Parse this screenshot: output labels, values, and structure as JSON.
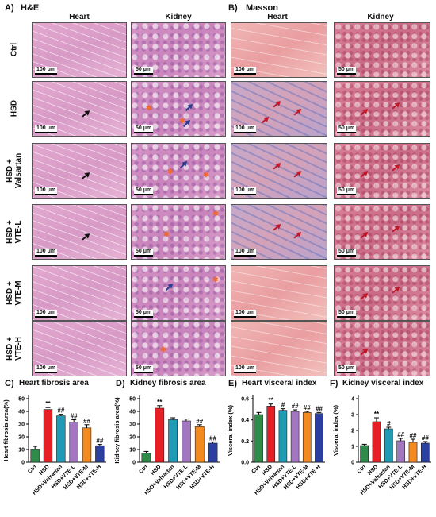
{
  "panels": {
    "a_label": "A)",
    "a_title": "H&E",
    "b_label": "B)",
    "b_title": "Masson",
    "col_heart": "Heart",
    "col_kidney": "Kidney",
    "scale_100": "100 μm",
    "scale_50": "50 μm"
  },
  "rows": [
    {
      "label": "Ctrl",
      "sub": ""
    },
    {
      "label": "HSD",
      "sub": ""
    },
    {
      "label": "HSD",
      "sub": "Valsartan"
    },
    {
      "label": "HSD",
      "sub": "VTE-L"
    },
    {
      "label": "HSD",
      "sub": "VTE-M"
    },
    {
      "label": "HSD",
      "sub": "VTE-H"
    }
  ],
  "row_plus": "+",
  "colors": {
    "bars": [
      "#2e8b4a",
      "#e81e26",
      "#1f9bb5",
      "#a276c1",
      "#f28a1f",
      "#2b3fa0"
    ],
    "arrow_he": "#111111",
    "arrow_ms": "#c0182a",
    "star": "#f06a2c"
  },
  "chart_data": [
    {
      "panel": "C)",
      "type": "bar",
      "title": "Heart fibrosis area",
      "ylabel": "Heart fibrosis area(%)",
      "categories": [
        "Ctrl",
        "HSD",
        "HSD+Valsartan",
        "HSD+VTE-L",
        "HSD+VTE-M",
        "HSD+VTE-H"
      ],
      "values": [
        10,
        41.5,
        36.5,
        31.5,
        27,
        13
      ],
      "errors": [
        2.5,
        1.5,
        1.2,
        2,
        2.5,
        1
      ],
      "annotations": [
        "",
        "**",
        "##",
        "##",
        "##",
        "##"
      ],
      "ylim": [
        0,
        50
      ],
      "yticks": [
        0,
        10,
        20,
        30,
        40,
        50
      ]
    },
    {
      "panel": "D)",
      "type": "bar",
      "title": "Kidney fibrosis area",
      "ylabel": "Kidney fibrosis area(%)",
      "categories": [
        "Ctrl",
        "HSD",
        "HSD+Valsartan",
        "HSD+VTE-L",
        "HSD+VTE-M",
        "HSD+VTE-H"
      ],
      "values": [
        7,
        42.5,
        33.5,
        32.5,
        28,
        15
      ],
      "errors": [
        1.5,
        2,
        1.5,
        1.5,
        1.5,
        1
      ],
      "annotations": [
        "",
        "**",
        "",
        "",
        "##",
        "##"
      ],
      "ylim": [
        0,
        50
      ],
      "yticks": [
        0,
        10,
        20,
        30,
        40,
        50
      ]
    },
    {
      "panel": "E)",
      "type": "bar",
      "title": "Heart visceral index",
      "ylabel": "Visceral index (%)",
      "categories": [
        "Ctrl",
        "HSD",
        "HSD+Valsartan",
        "HSD+VTE-L",
        "HSD+VTE-M",
        "HSD+VTE-H"
      ],
      "values": [
        0.45,
        0.53,
        0.49,
        0.48,
        0.47,
        0.46
      ],
      "errors": [
        0.02,
        0.02,
        0.015,
        0.015,
        0.01,
        0.01
      ],
      "annotations": [
        "",
        "**",
        "#",
        "##",
        "##",
        "##"
      ],
      "ylim": [
        0,
        0.6
      ],
      "yticks": [
        0,
        0.2,
        0.4,
        0.6
      ],
      "ytick_labels": [
        "0.0",
        "0.2",
        "0.4",
        "0.6"
      ]
    },
    {
      "panel": "F)",
      "type": "bar",
      "title": "Kidney visceral index",
      "ylabel": "Visceral index (%)",
      "categories": [
        "Ctrl",
        "HSD",
        "HSD+Valsartan",
        "HSD+VTE-L",
        "HSD+VTE-M",
        "HSD+VTE-H"
      ],
      "values": [
        1.05,
        2.55,
        2.1,
        1.35,
        1.25,
        1.2
      ],
      "errors": [
        0.08,
        0.25,
        0.1,
        0.15,
        0.2,
        0.1
      ],
      "annotations": [
        "",
        "**",
        "#",
        "##",
        "##",
        "##"
      ],
      "ylim": [
        0,
        4
      ],
      "yticks": [
        0,
        1,
        2,
        3,
        4
      ]
    }
  ]
}
